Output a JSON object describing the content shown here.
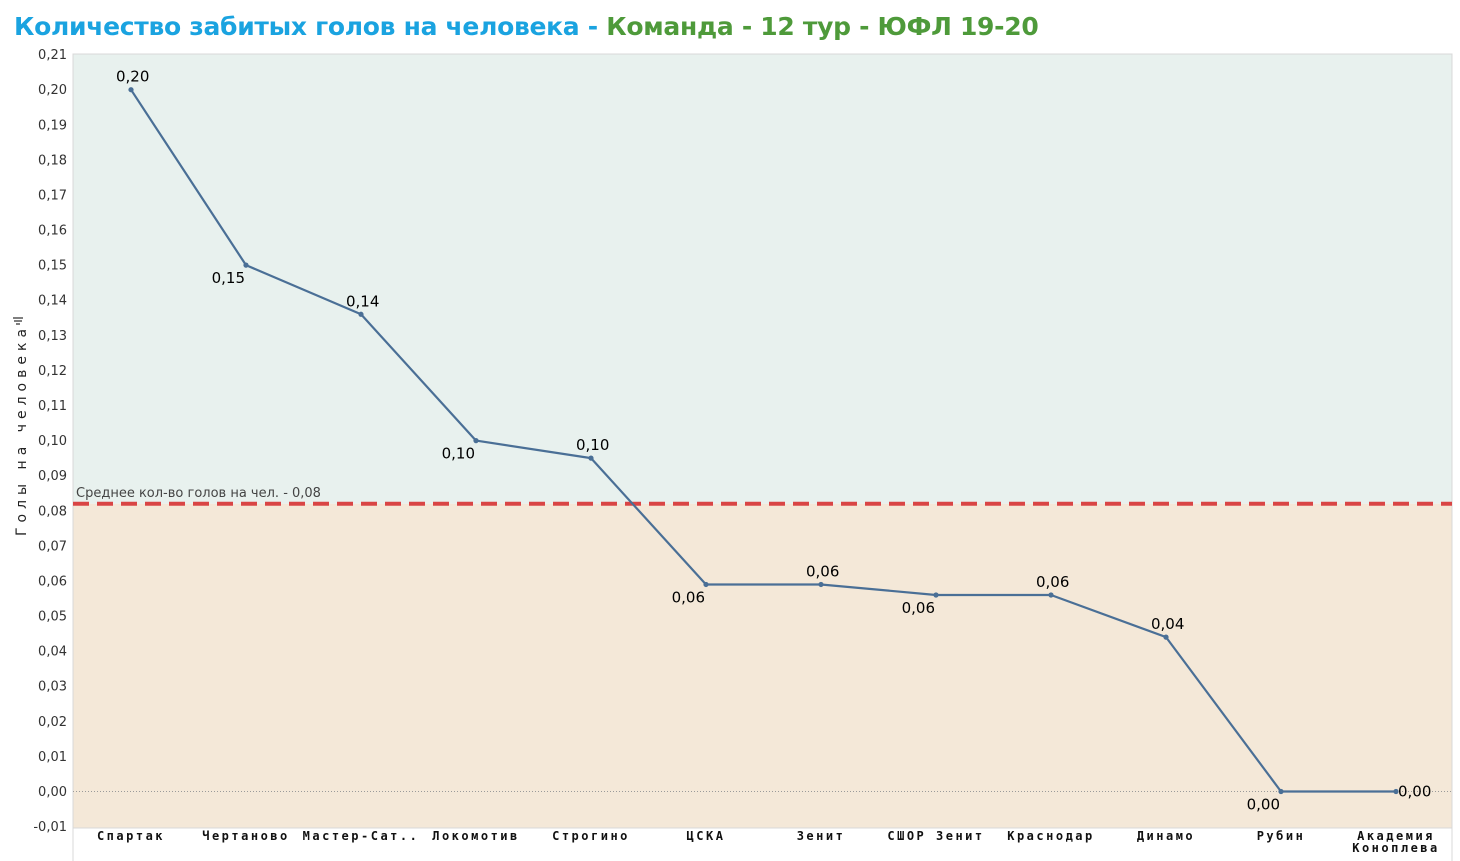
{
  "title": {
    "main": "Количество забитых голов на человека - ",
    "sub": "Команда - 12 тур - ЮФЛ 19-20"
  },
  "colors": {
    "title_main": "#1aa3e0",
    "title_sub": "#4e9a3a",
    "line": "#4a6f96",
    "reference_line": "#d94545",
    "band_above": "#e8f1ee",
    "band_below": "#f4e8d8"
  },
  "chart_data": {
    "type": "line",
    "ylabel": "Голы на человека",
    "ylim": [
      -0.01,
      0.21
    ],
    "yticks": [
      "0,21",
      "0,20",
      "0,19",
      "0,18",
      "0,17",
      "0,16",
      "0,15",
      "0,14",
      "0,13",
      "0,12",
      "0,11",
      "0,10",
      "0,09",
      "0,08",
      "0,07",
      "0,06",
      "0,05",
      "0,04",
      "0,03",
      "0,02",
      "0,01",
      "0,00",
      "-0,01"
    ],
    "categories": [
      "Спартак",
      "Чертаново",
      "Мастер-Сат..",
      "Локомотив",
      "Строгино",
      "ЦСКА",
      "Зенит",
      "СШОР Зенит",
      "Краснодар",
      "Динамо",
      "Рубин",
      "Академия\nКоноплева"
    ],
    "values": [
      0.2,
      0.15,
      0.136,
      0.1,
      0.095,
      0.059,
      0.059,
      0.056,
      0.056,
      0.044,
      0.0,
      0.0
    ],
    "data_labels": [
      "0,20",
      "0,15",
      "0,14",
      "0,10",
      "0,10",
      "0,06",
      "0,06",
      "0,06",
      "0,06",
      "0,04",
      "0,00",
      "0,00"
    ],
    "reference_line": {
      "value": 0.082,
      "label": "Среднее кол-во голов на чел. - 0,08"
    },
    "grid": false,
    "legend": "none"
  }
}
